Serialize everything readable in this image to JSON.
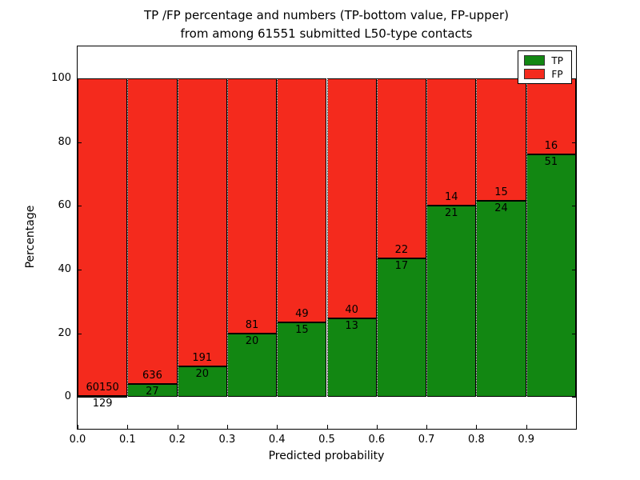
{
  "chart_data": {
    "type": "bar",
    "stacked": true,
    "title_line1": "TP /FP percentage and numbers (TP-bottom value, FP-upper)",
    "title_line2": "from among 61551 submitted L50-type contacts",
    "xlabel": "Predicted probability",
    "ylabel": "Percentage",
    "xlim": [
      0.0,
      1.0
    ],
    "ylim": [
      -10,
      110
    ],
    "xtick_labels": [
      "0.0",
      "0.1",
      "0.2",
      "0.3",
      "0.4",
      "0.5",
      "0.6",
      "0.7",
      "0.8",
      "0.9"
    ],
    "ytick_values": [
      0,
      20,
      40,
      60,
      80,
      100
    ],
    "grid": {
      "axis": "x",
      "style": "dotted",
      "color": "#ffffff"
    },
    "legend": {
      "position": "upper right"
    },
    "total_contacts": 61551,
    "series": [
      {
        "name": "TP",
        "color": "#128712",
        "counts": [
          129,
          27,
          20,
          20,
          15,
          13,
          17,
          21,
          24,
          51
        ]
      },
      {
        "name": "FP",
        "color": "#f42a1d",
        "counts": [
          60150,
          636,
          191,
          81,
          49,
          40,
          22,
          14,
          15,
          16
        ]
      }
    ],
    "bars": [
      {
        "bin": "0.0-0.1",
        "tp": 129,
        "fp": 60150,
        "tp_pct": 0.21
      },
      {
        "bin": "0.1-0.2",
        "tp": 27,
        "fp": 636,
        "tp_pct": 4.07
      },
      {
        "bin": "0.2-0.3",
        "tp": 20,
        "fp": 191,
        "tp_pct": 9.48
      },
      {
        "bin": "0.3-0.4",
        "tp": 20,
        "fp": 81,
        "tp_pct": 19.8
      },
      {
        "bin": "0.4-0.5",
        "tp": 15,
        "fp": 49,
        "tp_pct": 23.44
      },
      {
        "bin": "0.5-0.6",
        "tp": 13,
        "fp": 40,
        "tp_pct": 24.53
      },
      {
        "bin": "0.6-0.7",
        "tp": 17,
        "fp": 22,
        "tp_pct": 43.59
      },
      {
        "bin": "0.7-0.8",
        "tp": 21,
        "fp": 14,
        "tp_pct": 60.0
      },
      {
        "bin": "0.8-0.9",
        "tp": 24,
        "fp": 15,
        "tp_pct": 61.54
      },
      {
        "bin": "0.9-1.0",
        "tp": 51,
        "fp": 16,
        "tp_pct": 76.12
      }
    ]
  }
}
